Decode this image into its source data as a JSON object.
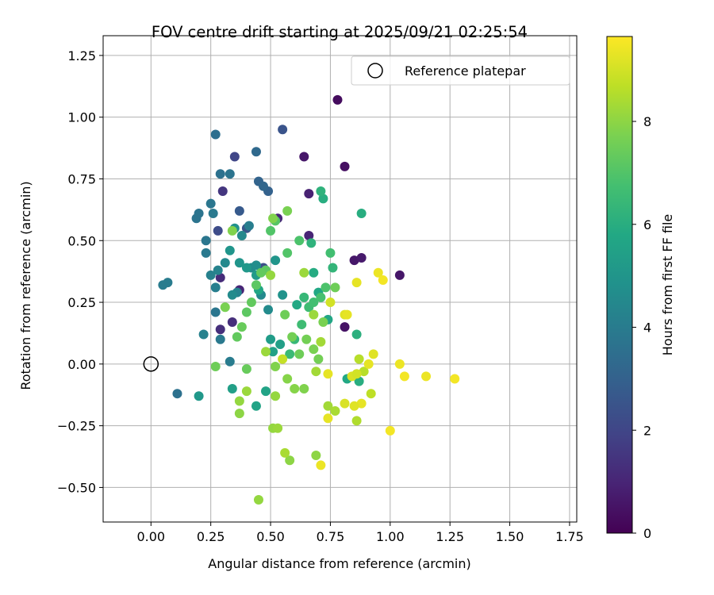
{
  "chart_data": {
    "type": "scatter",
    "title": "FOV centre drift starting at 2025/09/21 02:25:54",
    "xlabel": "Angular distance from reference (arcmin)",
    "ylabel": "Rotation from reference (arcmin)",
    "xlim": [
      -0.2,
      1.78
    ],
    "ylim": [
      -0.64,
      1.33
    ],
    "xticks": [
      "0.00",
      "0.25",
      "0.50",
      "0.75",
      "1.00",
      "1.25",
      "1.50",
      "1.75"
    ],
    "yticks": [
      "−0.50",
      "−0.25",
      "0.00",
      "0.25",
      "0.50",
      "0.75",
      "1.00",
      "1.25"
    ],
    "grid": true,
    "colorbar": {
      "label": "Hours from first FF file",
      "range": [
        0,
        9.65
      ],
      "ticks": [
        "0",
        "2",
        "4",
        "6",
        "8"
      ],
      "colormap": "viridis"
    },
    "legend": {
      "location": "top-right",
      "entries": [
        "Reference platepar"
      ]
    },
    "reference_point": {
      "x": 0.0,
      "y": 0.0
    },
    "points": [
      {
        "x": 0.78,
        "y": 1.07,
        "c": 0.3
      },
      {
        "x": 0.81,
        "y": 0.8,
        "c": 0.4
      },
      {
        "x": 0.64,
        "y": 0.84,
        "c": 0.6
      },
      {
        "x": 1.04,
        "y": 0.36,
        "c": 0.6
      },
      {
        "x": 0.85,
        "y": 0.42,
        "c": 0.6
      },
      {
        "x": 0.88,
        "y": 0.43,
        "c": 0.7
      },
      {
        "x": 0.81,
        "y": 0.15,
        "c": 0.5
      },
      {
        "x": 0.66,
        "y": 0.69,
        "c": 0.9
      },
      {
        "x": 0.66,
        "y": 0.52,
        "c": 1.0
      },
      {
        "x": 0.53,
        "y": 0.59,
        "c": 1.1
      },
      {
        "x": 0.37,
        "y": 0.3,
        "c": 1.0
      },
      {
        "x": 0.29,
        "y": 0.35,
        "c": 1.2
      },
      {
        "x": 0.34,
        "y": 0.17,
        "c": 1.3
      },
      {
        "x": 0.29,
        "y": 0.14,
        "c": 1.3
      },
      {
        "x": 0.3,
        "y": 0.7,
        "c": 1.5
      },
      {
        "x": 0.35,
        "y": 0.84,
        "c": 2.0
      },
      {
        "x": 0.55,
        "y": 0.95,
        "c": 2.5
      },
      {
        "x": 0.28,
        "y": 0.54,
        "c": 2.2
      },
      {
        "x": 0.4,
        "y": 0.55,
        "c": 2.6
      },
      {
        "x": 0.37,
        "y": 0.62,
        "c": 2.7
      },
      {
        "x": 0.47,
        "y": 0.39,
        "c": 2.3
      },
      {
        "x": 0.49,
        "y": 0.7,
        "c": 3.0
      },
      {
        "x": 0.45,
        "y": 0.74,
        "c": 3.1
      },
      {
        "x": 0.47,
        "y": 0.72,
        "c": 3.2
      },
      {
        "x": 0.44,
        "y": 0.86,
        "c": 3.3
      },
      {
        "x": 0.27,
        "y": 0.93,
        "c": 3.5
      },
      {
        "x": 0.29,
        "y": 0.77,
        "c": 3.6
      },
      {
        "x": 0.33,
        "y": 0.77,
        "c": 3.7
      },
      {
        "x": 0.25,
        "y": 0.65,
        "c": 3.8
      },
      {
        "x": 0.2,
        "y": 0.61,
        "c": 3.7
      },
      {
        "x": 0.19,
        "y": 0.59,
        "c": 3.7
      },
      {
        "x": 0.23,
        "y": 0.5,
        "c": 3.8
      },
      {
        "x": 0.23,
        "y": 0.45,
        "c": 3.9
      },
      {
        "x": 0.26,
        "y": 0.61,
        "c": 3.9
      },
      {
        "x": 0.11,
        "y": -0.12,
        "c": 3.6
      },
      {
        "x": 0.05,
        "y": 0.32,
        "c": 4.0
      },
      {
        "x": 0.07,
        "y": 0.33,
        "c": 4.0
      },
      {
        "x": 0.27,
        "y": 0.21,
        "c": 3.8
      },
      {
        "x": 0.29,
        "y": 0.1,
        "c": 3.9
      },
      {
        "x": 0.22,
        "y": 0.12,
        "c": 4.2
      },
      {
        "x": 0.33,
        "y": 0.01,
        "c": 4.0
      },
      {
        "x": 0.25,
        "y": 0.36,
        "c": 4.2
      },
      {
        "x": 0.27,
        "y": 0.31,
        "c": 4.1
      },
      {
        "x": 0.28,
        "y": 0.38,
        "c": 4.3
      },
      {
        "x": 0.31,
        "y": 0.41,
        "c": 4.5
      },
      {
        "x": 0.36,
        "y": 0.29,
        "c": 4.3
      },
      {
        "x": 0.34,
        "y": 0.28,
        "c": 4.6
      },
      {
        "x": 0.38,
        "y": 0.52,
        "c": 4.5
      },
      {
        "x": 0.41,
        "y": 0.56,
        "c": 4.1
      },
      {
        "x": 0.42,
        "y": 0.39,
        "c": 4.6
      },
      {
        "x": 0.44,
        "y": 0.4,
        "c": 4.7
      },
      {
        "x": 0.46,
        "y": 0.28,
        "c": 4.5
      },
      {
        "x": 0.49,
        "y": 0.22,
        "c": 4.6
      },
      {
        "x": 0.35,
        "y": 0.55,
        "c": 4.8
      },
      {
        "x": 0.33,
        "y": 0.46,
        "c": 5.0
      },
      {
        "x": 0.37,
        "y": 0.41,
        "c": 5.0
      },
      {
        "x": 0.4,
        "y": 0.39,
        "c": 5.1
      },
      {
        "x": 0.44,
        "y": 0.36,
        "c": 5.2
      },
      {
        "x": 0.52,
        "y": 0.42,
        "c": 5.0
      },
      {
        "x": 0.55,
        "y": 0.28,
        "c": 4.9
      },
      {
        "x": 0.2,
        "y": -0.13,
        "c": 5.1
      },
      {
        "x": 0.34,
        "y": -0.1,
        "c": 5.4
      },
      {
        "x": 0.5,
        "y": 0.1,
        "c": 5.3
      },
      {
        "x": 0.51,
        "y": 0.05,
        "c": 5.5
      },
      {
        "x": 0.54,
        "y": 0.08,
        "c": 5.4
      },
      {
        "x": 0.48,
        "y": -0.11,
        "c": 5.6
      },
      {
        "x": 0.44,
        "y": -0.17,
        "c": 5.6
      },
      {
        "x": 0.45,
        "y": 0.3,
        "c": 5.7
      },
      {
        "x": 0.61,
        "y": 0.24,
        "c": 5.8
      },
      {
        "x": 0.68,
        "y": 0.37,
        "c": 5.9
      },
      {
        "x": 0.7,
        "y": 0.29,
        "c": 5.8
      },
      {
        "x": 0.74,
        "y": 0.18,
        "c": 5.7
      },
      {
        "x": 0.82,
        "y": -0.06,
        "c": 5.8
      },
      {
        "x": 0.87,
        "y": -0.07,
        "c": 6.0
      },
      {
        "x": 0.86,
        "y": 0.12,
        "c": 6.1
      },
      {
        "x": 0.88,
        "y": 0.61,
        "c": 6.0
      },
      {
        "x": 0.72,
        "y": 0.67,
        "c": 6.0
      },
      {
        "x": 0.71,
        "y": 0.7,
        "c": 6.2
      },
      {
        "x": 0.76,
        "y": 0.39,
        "c": 6.3
      },
      {
        "x": 0.67,
        "y": 0.49,
        "c": 6.2
      },
      {
        "x": 0.64,
        "y": 0.27,
        "c": 6.4
      },
      {
        "x": 0.58,
        "y": 0.04,
        "c": 6.5
      },
      {
        "x": 0.6,
        "y": 0.1,
        "c": 6.4
      },
      {
        "x": 0.63,
        "y": 0.16,
        "c": 6.6
      },
      {
        "x": 0.66,
        "y": 0.23,
        "c": 6.6
      },
      {
        "x": 0.68,
        "y": 0.25,
        "c": 6.7
      },
      {
        "x": 0.71,
        "y": 0.27,
        "c": 6.8
      },
      {
        "x": 0.73,
        "y": 0.31,
        "c": 6.9
      },
      {
        "x": 0.75,
        "y": 0.45,
        "c": 6.7
      },
      {
        "x": 0.62,
        "y": 0.5,
        "c": 6.9
      },
      {
        "x": 0.57,
        "y": 0.45,
        "c": 7.0
      },
      {
        "x": 0.52,
        "y": 0.58,
        "c": 7.1
      },
      {
        "x": 0.5,
        "y": 0.54,
        "c": 7.0
      },
      {
        "x": 0.48,
        "y": 0.38,
        "c": 7.2
      },
      {
        "x": 0.46,
        "y": 0.37,
        "c": 7.3
      },
      {
        "x": 0.44,
        "y": 0.32,
        "c": 7.2
      },
      {
        "x": 0.42,
        "y": 0.25,
        "c": 7.3
      },
      {
        "x": 0.4,
        "y": 0.21,
        "c": 7.2
      },
      {
        "x": 0.38,
        "y": 0.15,
        "c": 7.4
      },
      {
        "x": 0.36,
        "y": 0.11,
        "c": 7.3
      },
      {
        "x": 0.27,
        "y": -0.01,
        "c": 7.5
      },
      {
        "x": 0.4,
        "y": -0.02,
        "c": 7.4
      },
      {
        "x": 0.56,
        "y": 0.2,
        "c": 7.5
      },
      {
        "x": 0.59,
        "y": 0.11,
        "c": 7.6
      },
      {
        "x": 0.62,
        "y": 0.04,
        "c": 7.5
      },
      {
        "x": 0.65,
        "y": 0.1,
        "c": 7.6
      },
      {
        "x": 0.68,
        "y": 0.06,
        "c": 7.7
      },
      {
        "x": 0.7,
        "y": 0.02,
        "c": 7.6
      },
      {
        "x": 0.72,
        "y": 0.17,
        "c": 7.7
      },
      {
        "x": 0.77,
        "y": 0.31,
        "c": 7.5
      },
      {
        "x": 0.57,
        "y": 0.62,
        "c": 7.7
      },
      {
        "x": 0.51,
        "y": 0.59,
        "c": 7.8
      },
      {
        "x": 0.34,
        "y": 0.54,
        "c": 7.8
      },
      {
        "x": 0.31,
        "y": 0.23,
        "c": 7.7
      },
      {
        "x": 0.52,
        "y": -0.01,
        "c": 7.8
      },
      {
        "x": 0.57,
        "y": -0.06,
        "c": 7.9
      },
      {
        "x": 0.6,
        "y": -0.1,
        "c": 7.9
      },
      {
        "x": 0.64,
        "y": -0.1,
        "c": 7.8
      },
      {
        "x": 0.69,
        "y": -0.37,
        "c": 8.0
      },
      {
        "x": 0.58,
        "y": -0.39,
        "c": 8.0
      },
      {
        "x": 0.45,
        "y": -0.55,
        "c": 8.1
      },
      {
        "x": 0.51,
        "y": -0.26,
        "c": 8.1
      },
      {
        "x": 0.53,
        "y": -0.26,
        "c": 8.2
      },
      {
        "x": 0.37,
        "y": -0.2,
        "c": 8.0
      },
      {
        "x": 0.37,
        "y": -0.15,
        "c": 8.1
      },
      {
        "x": 0.4,
        "y": -0.11,
        "c": 8.2
      },
      {
        "x": 0.52,
        "y": -0.13,
        "c": 8.1
      },
      {
        "x": 0.48,
        "y": 0.05,
        "c": 8.2
      },
      {
        "x": 0.5,
        "y": 0.36,
        "c": 8.1
      },
      {
        "x": 0.64,
        "y": 0.37,
        "c": 8.2
      },
      {
        "x": 0.68,
        "y": 0.2,
        "c": 8.2
      },
      {
        "x": 0.71,
        "y": 0.09,
        "c": 8.3
      },
      {
        "x": 0.69,
        "y": -0.03,
        "c": 8.3
      },
      {
        "x": 0.74,
        "y": -0.17,
        "c": 8.3
      },
      {
        "x": 0.77,
        "y": -0.19,
        "c": 8.4
      },
      {
        "x": 0.56,
        "y": -0.36,
        "c": 8.4
      },
      {
        "x": 0.86,
        "y": -0.23,
        "c": 8.5
      },
      {
        "x": 0.87,
        "y": 0.02,
        "c": 8.6
      },
      {
        "x": 0.92,
        "y": -0.12,
        "c": 8.7
      },
      {
        "x": 0.89,
        "y": -0.03,
        "c": 8.6
      },
      {
        "x": 0.55,
        "y": 0.02,
        "c": 8.8
      },
      {
        "x": 0.75,
        "y": 0.25,
        "c": 9.0
      },
      {
        "x": 0.81,
        "y": 0.2,
        "c": 9.2
      },
      {
        "x": 0.82,
        "y": 0.2,
        "c": 9.3
      },
      {
        "x": 0.86,
        "y": 0.33,
        "c": 9.3
      },
      {
        "x": 0.95,
        "y": 0.37,
        "c": 9.4
      },
      {
        "x": 0.97,
        "y": 0.34,
        "c": 9.5
      },
      {
        "x": 0.93,
        "y": 0.04,
        "c": 9.2
      },
      {
        "x": 0.91,
        "y": 0.0,
        "c": 9.3
      },
      {
        "x": 1.04,
        "y": 0.0,
        "c": 9.4
      },
      {
        "x": 1.06,
        "y": -0.05,
        "c": 9.5
      },
      {
        "x": 1.15,
        "y": -0.05,
        "c": 9.4
      },
      {
        "x": 1.27,
        "y": -0.06,
        "c": 9.5
      },
      {
        "x": 1.0,
        "y": -0.27,
        "c": 9.5
      },
      {
        "x": 0.88,
        "y": -0.16,
        "c": 9.3
      },
      {
        "x": 0.85,
        "y": -0.17,
        "c": 9.2
      },
      {
        "x": 0.81,
        "y": -0.16,
        "c": 9.1
      },
      {
        "x": 0.74,
        "y": -0.22,
        "c": 9.3
      },
      {
        "x": 0.71,
        "y": -0.41,
        "c": 9.4
      },
      {
        "x": 0.74,
        "y": -0.04,
        "c": 9.3
      },
      {
        "x": 0.84,
        "y": -0.05,
        "c": 9.1
      },
      {
        "x": 0.86,
        "y": -0.04,
        "c": 9.0
      }
    ]
  }
}
